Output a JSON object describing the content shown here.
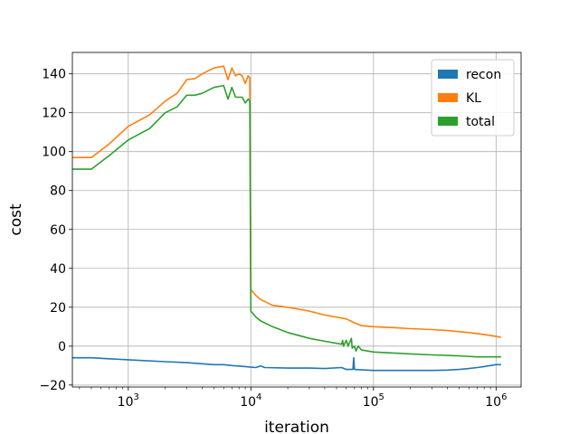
{
  "chart_data": {
    "type": "line",
    "xlabel": "iteration",
    "ylabel": "cost",
    "x_scale": "log",
    "xlim": [
      350,
      1600000
    ],
    "ylim": [
      -21,
      151
    ],
    "grid": true,
    "legend_position": "top-right",
    "x_ticks": [
      {
        "value": 1000,
        "base": "10",
        "exp": "3"
      },
      {
        "value": 10000,
        "base": "10",
        "exp": "4"
      },
      {
        "value": 100000,
        "base": "10",
        "exp": "5"
      },
      {
        "value": 1000000,
        "base": "10",
        "exp": "6"
      }
    ],
    "y_ticks": [
      {
        "value": -20,
        "label": "−20"
      },
      {
        "value": 0,
        "label": "0"
      },
      {
        "value": 20,
        "label": "20"
      },
      {
        "value": 40,
        "label": "40"
      },
      {
        "value": 60,
        "label": "60"
      },
      {
        "value": 80,
        "label": "80"
      },
      {
        "value": 100,
        "label": "100"
      },
      {
        "value": 120,
        "label": "120"
      },
      {
        "value": 140,
        "label": "140"
      }
    ],
    "series": [
      {
        "name": "recon",
        "color": "#1f77b4",
        "points": [
          [
            350,
            -6
          ],
          [
            500,
            -6
          ],
          [
            700,
            -6.5
          ],
          [
            1000,
            -7
          ],
          [
            2000,
            -8
          ],
          [
            3000,
            -8.5
          ],
          [
            5000,
            -9.5
          ],
          [
            6000,
            -9.5
          ],
          [
            7000,
            -10
          ],
          [
            9000,
            -10.5
          ],
          [
            10000,
            -10.8
          ],
          [
            11000,
            -11
          ],
          [
            12000,
            -10.2
          ],
          [
            13000,
            -11
          ],
          [
            20000,
            -11.3
          ],
          [
            30000,
            -11.3
          ],
          [
            40000,
            -11.5
          ],
          [
            55000,
            -11
          ],
          [
            60000,
            -12
          ],
          [
            68000,
            -12
          ],
          [
            69000,
            -6
          ],
          [
            70000,
            -12
          ],
          [
            80000,
            -12.2
          ],
          [
            100000,
            -12.5
          ],
          [
            200000,
            -12.5
          ],
          [
            300000,
            -12.5
          ],
          [
            400000,
            -12.3
          ],
          [
            500000,
            -12
          ],
          [
            600000,
            -11.5
          ],
          [
            700000,
            -11
          ],
          [
            800000,
            -10.5
          ],
          [
            900000,
            -10
          ],
          [
            1000000,
            -9.5
          ],
          [
            1100000,
            -9.5
          ]
        ]
      },
      {
        "name": "KL",
        "color": "#ff7f0e",
        "points": [
          [
            350,
            97
          ],
          [
            500,
            97
          ],
          [
            700,
            104
          ],
          [
            1000,
            113
          ],
          [
            1500,
            119
          ],
          [
            2000,
            126
          ],
          [
            2500,
            130
          ],
          [
            3000,
            137
          ],
          [
            3500,
            137.5
          ],
          [
            4000,
            140
          ],
          [
            5000,
            143
          ],
          [
            6000,
            144
          ],
          [
            6500,
            137
          ],
          [
            7000,
            143
          ],
          [
            7500,
            139
          ],
          [
            8000,
            140
          ],
          [
            8500,
            139
          ],
          [
            9000,
            135
          ],
          [
            9500,
            139
          ],
          [
            9800,
            138
          ],
          [
            10000,
            29
          ],
          [
            11000,
            26
          ],
          [
            12000,
            24
          ],
          [
            15000,
            21
          ],
          [
            20000,
            20
          ],
          [
            30000,
            18
          ],
          [
            40000,
            16
          ],
          [
            60000,
            14
          ],
          [
            70000,
            12
          ],
          [
            80000,
            10.5
          ],
          [
            100000,
            10
          ],
          [
            150000,
            9.5
          ],
          [
            200000,
            9
          ],
          [
            300000,
            8.5
          ],
          [
            400000,
            8
          ],
          [
            600000,
            7
          ],
          [
            800000,
            6
          ],
          [
            1000000,
            5
          ],
          [
            1100000,
            4.5
          ]
        ]
      },
      {
        "name": "total",
        "color": "#2ca02c",
        "points": [
          [
            350,
            91
          ],
          [
            500,
            91
          ],
          [
            700,
            98
          ],
          [
            1000,
            106
          ],
          [
            1500,
            112
          ],
          [
            2000,
            120
          ],
          [
            2500,
            123
          ],
          [
            3000,
            129
          ],
          [
            3500,
            129
          ],
          [
            4000,
            130
          ],
          [
            5000,
            133
          ],
          [
            6000,
            134
          ],
          [
            6500,
            127
          ],
          [
            7000,
            133
          ],
          [
            7500,
            128
          ],
          [
            8000,
            128
          ],
          [
            8500,
            128
          ],
          [
            9000,
            125
          ],
          [
            9500,
            127
          ],
          [
            9800,
            126
          ],
          [
            10000,
            18
          ],
          [
            11000,
            15
          ],
          [
            12000,
            13
          ],
          [
            15000,
            10
          ],
          [
            20000,
            7
          ],
          [
            30000,
            4
          ],
          [
            40000,
            2.5
          ],
          [
            55000,
            1
          ],
          [
            56000,
            3
          ],
          [
            57000,
            0
          ],
          [
            60000,
            3
          ],
          [
            62000,
            0
          ],
          [
            66000,
            4
          ],
          [
            67000,
            -1
          ],
          [
            70000,
            0
          ],
          [
            72000,
            -2.5
          ],
          [
            75000,
            0
          ],
          [
            80000,
            -2
          ],
          [
            100000,
            -3
          ],
          [
            200000,
            -4
          ],
          [
            300000,
            -4.5
          ],
          [
            500000,
            -5
          ],
          [
            700000,
            -5.5
          ],
          [
            1000000,
            -5.5
          ],
          [
            1100000,
            -5.5
          ]
        ]
      }
    ]
  }
}
